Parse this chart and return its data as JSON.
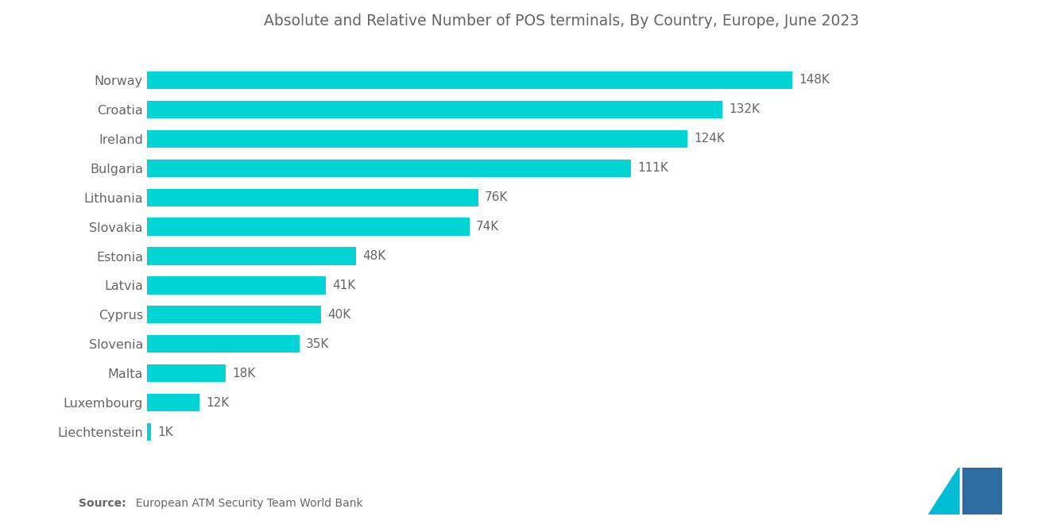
{
  "title": "Absolute and Relative Number of POS terminals, By Country, Europe, June 2023",
  "source_label": "Source:",
  "source_rest": "  European ATM Security Team World Bank",
  "categories": [
    "Norway",
    "Croatia",
    "Ireland",
    "Bulgaria",
    "Lithuania",
    "Slovakia",
    "Estonia",
    "Latvia",
    "Cyprus",
    "Slovenia",
    "Malta",
    "Luxembourg",
    "Liechtenstein"
  ],
  "values": [
    148,
    132,
    124,
    111,
    76,
    74,
    48,
    41,
    40,
    35,
    18,
    12,
    1
  ],
  "bar_color": "#00D4D4",
  "label_color": "#666666",
  "title_color": "#666666",
  "background_color": "#ffffff",
  "label_suffix": "K",
  "bar_height": 0.6,
  "title_fontsize": 13.5,
  "label_fontsize": 11,
  "tick_fontsize": 11.5,
  "source_fontsize": 10,
  "logo_left_color": "#00BCD4",
  "logo_right_color": "#2E6DA4"
}
